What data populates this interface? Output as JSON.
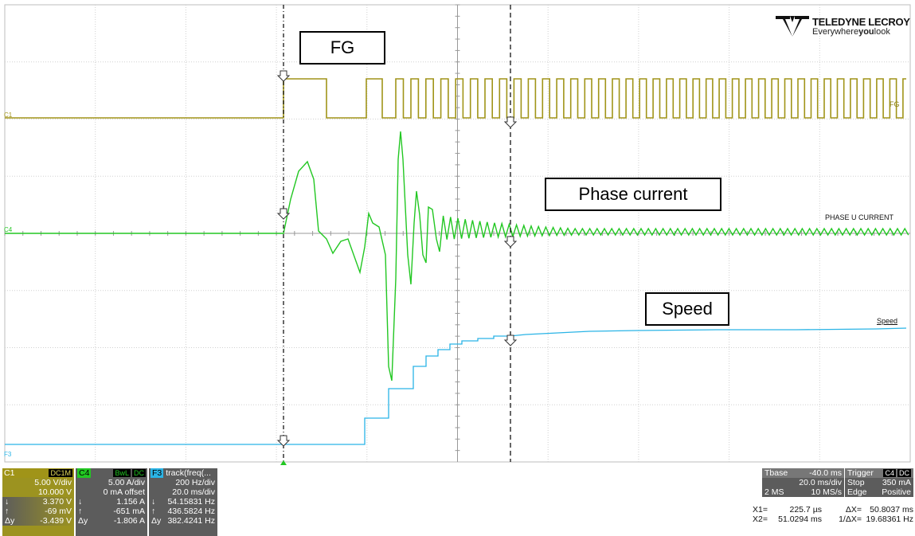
{
  "annotations": {
    "fg": "FG",
    "phase_current": "Phase current",
    "speed": "Speed"
  },
  "logo": {
    "brand": "TELEDYNE LECROY",
    "tagline_pre": "Everywhere",
    "tagline_bold": "you",
    "tagline_post": "look"
  },
  "trace_labels": {
    "fg": "FG",
    "phase": "PHASE U CURRENT",
    "speed": "Speed"
  },
  "channel_markers": {
    "c1": "C1",
    "c4": "C4",
    "f3": "F3"
  },
  "colors": {
    "c1": "#a09418",
    "c4": "#22c722",
    "f3": "#2ab4e6",
    "panel_bg": "#5c5c5c"
  },
  "c1_panel": {
    "name": "C1",
    "tag": "DC1M",
    "rows": [
      {
        "l": "",
        "r": "5.00 V/div"
      },
      {
        "l": "",
        "r": "10.000 V"
      },
      {
        "l": "↓",
        "r": "3.370 V"
      },
      {
        "l": "↑",
        "r": "-69 mV"
      },
      {
        "l": "Δy",
        "r": "-3.439 V"
      }
    ]
  },
  "c4_panel": {
    "name": "C4",
    "tag1": "BwL",
    "tag2": "DC",
    "rows": [
      {
        "l": "",
        "r": "5.00 A/div"
      },
      {
        "l": "",
        "r": "0 mA offset"
      },
      {
        "l": "↓",
        "r": "1.156 A"
      },
      {
        "l": "↑",
        "r": "-651 mA"
      },
      {
        "l": "Δy",
        "r": "-1.806 A"
      }
    ]
  },
  "f3_panel": {
    "name": "F3",
    "title": "track(freq(...",
    "rows": [
      {
        "l": "",
        "r": "200 Hz/div"
      },
      {
        "l": "",
        "r": "20.0 ms/div"
      },
      {
        "l": "↓",
        "r": "54.15831 Hz"
      },
      {
        "l": "↑",
        "r": "436.5824 Hz"
      },
      {
        "l": "Δy",
        "r": "382.4241 Hz"
      }
    ]
  },
  "timebase": {
    "label": "Tbase",
    "delay": "-40.0 ms",
    "per_div": "20.0 ms/div",
    "mem": "2 MS",
    "rate": "10 MS/s"
  },
  "trigger": {
    "label": "Trigger",
    "tag1": "C4",
    "tag2": "DC",
    "mode": "Stop",
    "level": "350 mA",
    "type": "Edge",
    "slope": "Positive"
  },
  "cursors": {
    "x1_label": "X1=",
    "x1": "225.7 µs",
    "dx_label": "ΔX=",
    "dx": "50.8037 ms",
    "x2_label": "X2=",
    "x2": "51.0294 ms",
    "inv_label": "1/ΔX=",
    "inv": "19.68361 Hz"
  }
}
